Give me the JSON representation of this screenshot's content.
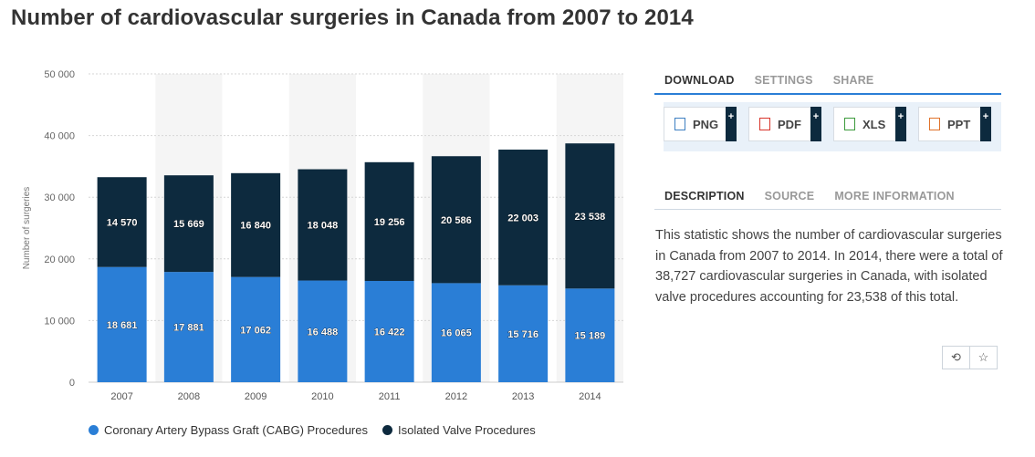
{
  "title": "Number of cardiovascular surgeries in Canada from 2007 to 2014",
  "chart_data": {
    "type": "bar",
    "stacked": true,
    "categories": [
      "2007",
      "2008",
      "2009",
      "2010",
      "2011",
      "2012",
      "2013",
      "2014"
    ],
    "series": [
      {
        "name": "Coronary Artery Bypass Graft (CABG) Procedures",
        "color": "#2a7ed6",
        "values": [
          18681,
          17881,
          17062,
          16488,
          16422,
          16065,
          15716,
          15189
        ],
        "labels": [
          "18 681",
          "17 881",
          "17 062",
          "16 488",
          "16 422",
          "16 065",
          "15 716",
          "15 189"
        ]
      },
      {
        "name": "Isolated Valve Procedures",
        "color": "#0d2a3e",
        "values": [
          14570,
          15669,
          16840,
          18048,
          19256,
          20586,
          22003,
          23538
        ],
        "labels": [
          "14 570",
          "15 669",
          "16 840",
          "18 048",
          "19 256",
          "20 586",
          "22 003",
          "23 538"
        ]
      }
    ],
    "ylabel": "Number of surgeries",
    "ylim": [
      0,
      50000
    ],
    "yticks": [
      0,
      10000,
      20000,
      30000,
      40000,
      50000
    ],
    "ytick_labels": [
      "0",
      "10 000",
      "20 000",
      "30 000",
      "40 000",
      "50 000"
    ],
    "grid": true,
    "legend": "bottom-left"
  },
  "tabs_top": [
    "DOWNLOAD",
    "SETTINGS",
    "SHARE"
  ],
  "download_buttons": [
    {
      "label": "PNG",
      "icon": "png-file-icon",
      "color": "#3d7fc1"
    },
    {
      "label": "PDF",
      "icon": "pdf-file-icon",
      "color": "#d9342b"
    },
    {
      "label": "XLS",
      "icon": "xls-file-icon",
      "color": "#3b9a3b"
    },
    {
      "label": "PPT",
      "icon": "ppt-file-icon",
      "color": "#e0722a"
    }
  ],
  "plus_label": "+",
  "tabs_bottom": [
    "DESCRIPTION",
    "SOURCE",
    "MORE INFORMATION"
  ],
  "description": "This statistic shows the number of cardiovascular surgeries in Canada from 2007 to 2014. In 2014, there were a total of 38,727 cardiovascular surgeries in Canada, with isolated valve procedures accounting for 23,538 of this total.",
  "icon_buttons": [
    {
      "icon": "history-icon",
      "glyph": "⟲"
    },
    {
      "icon": "star-icon",
      "glyph": "☆"
    }
  ]
}
